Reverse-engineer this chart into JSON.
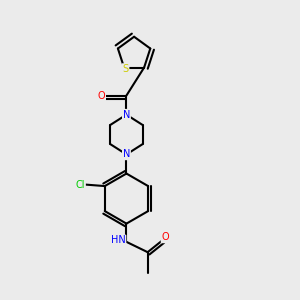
{
  "bg_color": "#ebebeb",
  "atom_colors": {
    "N": "#0000ff",
    "O": "#ff0000",
    "S": "#cccc00",
    "Cl": "#00cc00",
    "C": "#000000"
  },
  "figsize": [
    3.0,
    3.0
  ],
  "dpi": 100
}
